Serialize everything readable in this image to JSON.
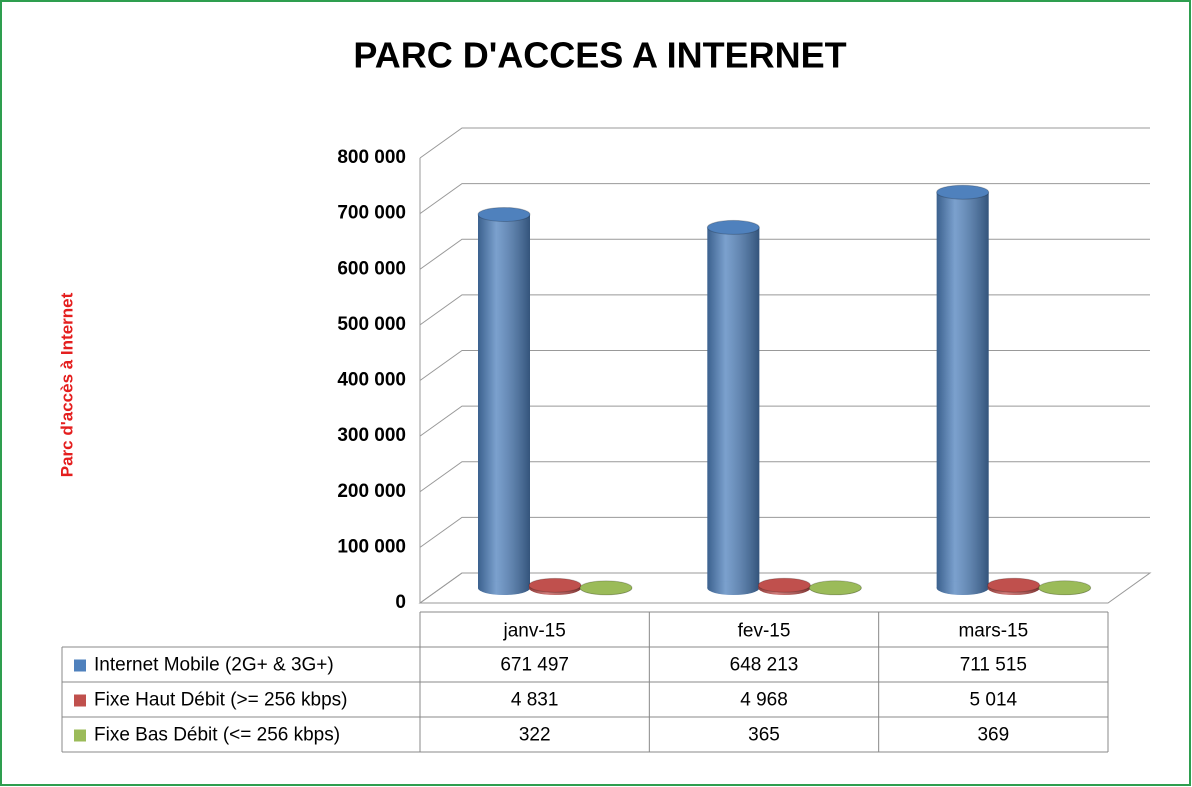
{
  "chart_data": {
    "type": "bar3d",
    "title": "PARC D'ACCES A INTERNET",
    "y_label": "Parc d'accès à Internet",
    "categories": [
      "janv-15",
      "fev-15",
      "mars-15"
    ],
    "series": [
      {
        "name": "Internet Mobile (2G+ & 3G+)",
        "color": "#4f81bd",
        "values": [
          671497,
          648213,
          711515
        ],
        "value_labels": [
          "671 497",
          "648 213",
          "711 515"
        ]
      },
      {
        "name": "Fixe Haut Débit (>= 256 kbps)",
        "color": "#c0504d",
        "values": [
          4831,
          4968,
          5014
        ],
        "value_labels": [
          "4 831",
          "4 968",
          "5 014"
        ]
      },
      {
        "name": "Fixe Bas Débit (<= 256 kbps)",
        "color": "#9bbb59",
        "values": [
          322,
          365,
          369
        ]
      }
    ],
    "ylim": [
      0,
      800000
    ],
    "yticks": [
      0,
      {
        "value": 100000,
        "label": "100 000"
      },
      {
        "value": 200000,
        "label": "200 000"
      },
      {
        "value": 300000,
        "label": "300 000"
      },
      {
        "value": 400000,
        "label": "400 000"
      },
      {
        "value": 500000,
        "label": "500 000"
      },
      {
        "value": 600000,
        "label": "600 000"
      },
      {
        "value": 700000,
        "label": "700 000"
      },
      {
        "value": 800000,
        "label": "800 000"
      }
    ],
    "grid": true
  }
}
